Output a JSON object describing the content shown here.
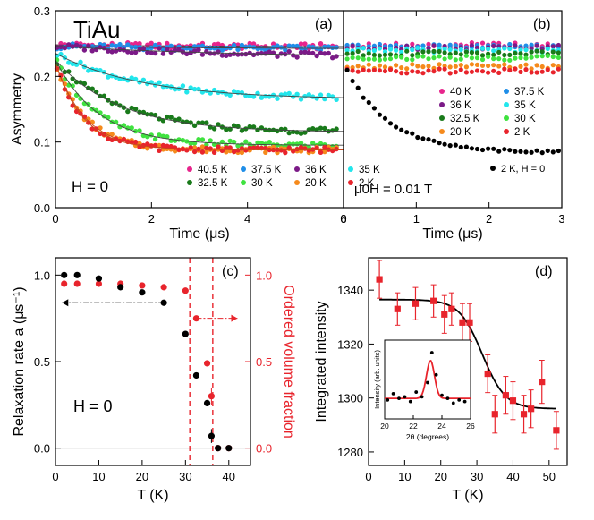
{
  "figure_title": "TiAu",
  "colors": {
    "c40": "#e7258c",
    "c40_5": "#e7258c",
    "c37_5": "#1f8ee8",
    "c36": "#7b1a87",
    "c35": "#22e6ec",
    "c32_5": "#197a1a",
    "c30": "#3fe23f",
    "c20": "#f58a1c",
    "c2": "#e8242c",
    "c2H0": "#000000",
    "fit": "#c8491c",
    "red": "#e8242c",
    "black": "#000000"
  },
  "chart_data": [
    {
      "id": "a",
      "type": "scatter",
      "panel_label": "(a)",
      "xlabel": "Time (μs)",
      "ylabel": "Asymmetry",
      "xlim": [
        0,
        6
      ],
      "ylim": [
        0,
        0.3
      ],
      "xticks": [
        "0",
        "2",
        "4",
        "6"
      ],
      "yticks": [
        "0.0",
        "0.1",
        "0.2",
        "0.3"
      ],
      "annotation": "H = 0",
      "series": [
        {
          "name": "40.5 K",
          "color_key": "c40_5",
          "a0": 0.248,
          "ainf": 0.245,
          "rate": 0.3
        },
        {
          "name": "37.5 K",
          "color_key": "c37_5",
          "a0": 0.246,
          "ainf": 0.242,
          "rate": 0.3
        },
        {
          "name": "36 K",
          "color_key": "c36",
          "a0": 0.246,
          "ainf": 0.228,
          "rate": 0.25
        },
        {
          "name": "35 K",
          "color_key": "c35",
          "a0": 0.235,
          "ainf": 0.165,
          "rate": 0.55
        },
        {
          "name": "32.5 K",
          "color_key": "c32_5",
          "a0": 0.225,
          "ainf": 0.115,
          "rate": 0.75
        },
        {
          "name": "30 K",
          "color_key": "c30",
          "a0": 0.225,
          "ainf": 0.095,
          "rate": 1.1
        },
        {
          "name": "20 K",
          "color_key": "c20",
          "a0": 0.22,
          "ainf": 0.088,
          "rate": 1.6
        },
        {
          "name": "2 K",
          "color_key": "c2",
          "a0": 0.22,
          "ainf": 0.088,
          "rate": 1.7
        }
      ]
    },
    {
      "id": "b",
      "type": "scatter",
      "panel_label": "(b)",
      "xlabel": "Time (μs)",
      "ylabel": "",
      "xlim": [
        0,
        3
      ],
      "ylim": [
        0,
        0.3
      ],
      "xticks": [
        "0",
        "1",
        "2",
        "3"
      ],
      "yticks": [],
      "annotation": "μ0H = 0.01 T",
      "series": [
        {
          "name": "40 K",
          "color_key": "c40",
          "level": 0.248
        },
        {
          "name": "37.5 K",
          "color_key": "c37_5",
          "level": 0.246
        },
        {
          "name": "36 K",
          "color_key": "c36",
          "level": 0.244
        },
        {
          "name": "35 K",
          "color_key": "c35",
          "level": 0.24
        },
        {
          "name": "32.5 K",
          "color_key": "c32_5",
          "level": 0.235
        },
        {
          "name": "30 K",
          "color_key": "c30",
          "level": 0.228
        },
        {
          "name": "20 K",
          "color_key": "c20",
          "level": 0.215
        },
        {
          "name": "2 K",
          "color_key": "c2",
          "level": 0.208
        },
        {
          "name": "2 K, H = 0",
          "color_key": "c2H0",
          "a0": 0.22,
          "ainf": 0.084,
          "rate": 1.7
        }
      ]
    },
    {
      "id": "c",
      "type": "scatter",
      "panel_label": "(c)",
      "xlabel": "T (K)",
      "ylabel_left": "Relaxation rate a (μs⁻¹)",
      "ylabel_right": "Ordered volume fraction",
      "xlim": [
        0,
        45
      ],
      "ylim": [
        -0.1,
        1.1
      ],
      "xticks": [
        "0",
        "10",
        "20",
        "30",
        "40"
      ],
      "yticks_left": [
        "0.0",
        "0.5",
        "1.0"
      ],
      "yticks_right": [
        "0.0",
        "0.5",
        "1.0"
      ],
      "annotation": "H = 0",
      "vlines": [
        31,
        36.3
      ],
      "rate_series": {
        "x": [
          2,
          5,
          10,
          15,
          20,
          25,
          30,
          32.5,
          35,
          36,
          37.5,
          40
        ],
        "y": [
          1.0,
          1.0,
          0.98,
          0.93,
          0.9,
          0.84,
          0.66,
          0.42,
          0.26,
          0.07,
          0.0,
          0.0
        ],
        "err": [
          0,
          0,
          0,
          0,
          0,
          0,
          0,
          0,
          0,
          0.04,
          0,
          0
        ]
      },
      "fraction_series": {
        "x": [
          2,
          5,
          10,
          15,
          20,
          25,
          30,
          32.5,
          35,
          36,
          37.5,
          40
        ],
        "y": [
          0.95,
          0.95,
          0.95,
          0.95,
          0.94,
          0.93,
          0.91,
          0.75,
          0.49,
          0.3,
          0.0,
          0.0
        ],
        "err": [
          0,
          0,
          0,
          0,
          0,
          0,
          0,
          0,
          0,
          0.05,
          0,
          0
        ]
      }
    },
    {
      "id": "d",
      "type": "scatter",
      "panel_label": "(d)",
      "xlabel": "T (K)",
      "ylabel": "Integrated intensity",
      "xlim": [
        0,
        55
      ],
      "ylim": [
        1275,
        1352
      ],
      "xticks": [
        "0",
        "10",
        "20",
        "30",
        "40",
        "50"
      ],
      "yticks": [
        "1280",
        "1300",
        "1320",
        "1340"
      ],
      "x": [
        3,
        8,
        13,
        18,
        21,
        23,
        26,
        28,
        33,
        35,
        38,
        40,
        43,
        45,
        48,
        52
      ],
      "y": [
        1344,
        1333,
        1335,
        1336,
        1331,
        1333,
        1328,
        1328,
        1309,
        1294,
        1301,
        1299,
        1294,
        1296,
        1306,
        1288
      ],
      "err": [
        7,
        6,
        6,
        6,
        7,
        6,
        7,
        7,
        7,
        7,
        7,
        7,
        7,
        7,
        8,
        7
      ],
      "fit": {
        "high": 1336.5,
        "low": 1296,
        "tc": 31.5,
        "width": 3.2
      },
      "inset": {
        "xlabel": "2θ (degrees)",
        "ylabel": "Intensity (arb. units)",
        "xlim": [
          20,
          26
        ],
        "ylim": [
          0,
          10
        ],
        "xticks": [
          "20",
          "22",
          "24",
          "26"
        ],
        "x": [
          20.2,
          20.6,
          21.0,
          21.4,
          21.8,
          22.2,
          22.6,
          23.0,
          23.3,
          23.6,
          24.0,
          24.4,
          24.8,
          25.2,
          25.6
        ],
        "y": [
          2.4,
          3.2,
          2.6,
          2.8,
          2.2,
          3.4,
          2.8,
          4.6,
          8.4,
          5.6,
          3.0,
          2.6,
          2.0,
          2.4,
          2.2
        ],
        "fit": {
          "base": 2.6,
          "amp": 4.8,
          "center": 23.2,
          "sigma": 0.28
        }
      }
    }
  ]
}
